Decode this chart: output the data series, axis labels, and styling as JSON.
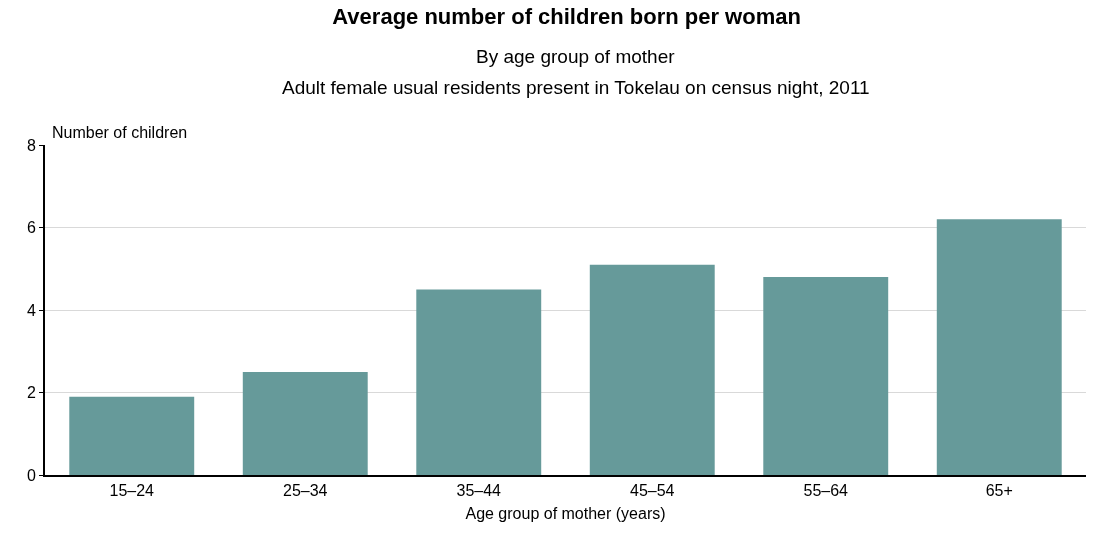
{
  "chart_data": {
    "type": "bar",
    "title": "Average number of children born per woman",
    "subtitle": "By age group of mother",
    "annotations": [
      "Adult female usual residents present in Tokelau on census night, 2011"
    ],
    "xlabel": "Age group of mother (years)",
    "ylabel": "Number of children",
    "categories": [
      "15–24",
      "25–34",
      "35–44",
      "45–54",
      "55–64",
      "65+"
    ],
    "values": [
      1.9,
      2.5,
      4.5,
      5.1,
      4.8,
      6.2
    ],
    "color": "#669a9a",
    "ylim": [
      0,
      8
    ],
    "yticks": [
      0,
      2,
      4,
      6,
      8
    ],
    "grid": "y",
    "legend": false
  }
}
